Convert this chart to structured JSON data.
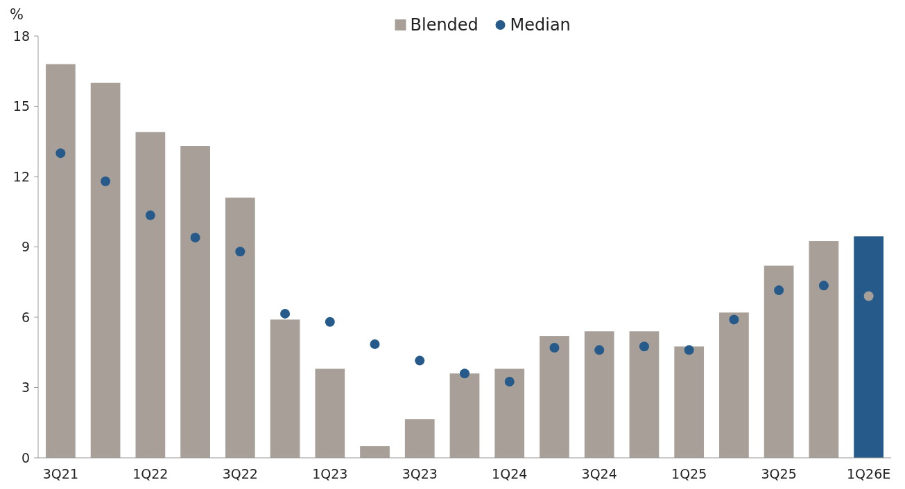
{
  "chart_data": {
    "type": "bar",
    "ylabel": "%",
    "categories": [
      "3Q21",
      null,
      "1Q22",
      null,
      "3Q22",
      null,
      "1Q23",
      null,
      "3Q23",
      null,
      "1Q24",
      null,
      "3Q24",
      null,
      "1Q25",
      null,
      "3Q25",
      null,
      "1Q26E"
    ],
    "series": [
      {
        "name": "Blended",
        "color": "#a8a098",
        "colors": [
          "#a8a098",
          "#a8a098",
          "#a8a098",
          "#a8a098",
          "#a8a098",
          "#a8a098",
          "#a8a098",
          "#a8a098",
          "#a8a098",
          "#a8a098",
          "#a8a098",
          "#a8a098",
          "#a8a098",
          "#a8a098",
          "#a8a098",
          "#a8a098",
          "#a8a098",
          "#a8a098",
          "#255a8a"
        ],
        "values": [
          16.8,
          16.0,
          13.9,
          13.3,
          11.1,
          5.9,
          3.8,
          0.5,
          1.65,
          3.6,
          3.8,
          5.2,
          5.4,
          5.4,
          4.75,
          6.2,
          8.2,
          9.25,
          9.45
        ]
      },
      {
        "name": "Median",
        "type": "scatter",
        "color": "#255a8a",
        "colors": [
          "#255a8a",
          "#255a8a",
          "#255a8a",
          "#255a8a",
          "#255a8a",
          "#255a8a",
          "#255a8a",
          "#255a8a",
          "#255a8a",
          "#255a8a",
          "#255a8a",
          "#255a8a",
          "#255a8a",
          "#255a8a",
          "#255a8a",
          "#255a8a",
          "#255a8a",
          "#255a8a",
          "#a8a098"
        ],
        "values": [
          13.0,
          11.8,
          10.35,
          9.4,
          8.8,
          6.15,
          5.8,
          4.85,
          4.15,
          3.6,
          3.25,
          4.7,
          4.6,
          4.75,
          4.6,
          5.9,
          7.15,
          7.35,
          6.9
        ]
      }
    ],
    "ylim": [
      0,
      18
    ],
    "yticks": [
      0,
      3,
      6,
      9,
      12,
      15,
      18
    ],
    "grid": false,
    "legend": "top",
    "marker": "circle"
  }
}
